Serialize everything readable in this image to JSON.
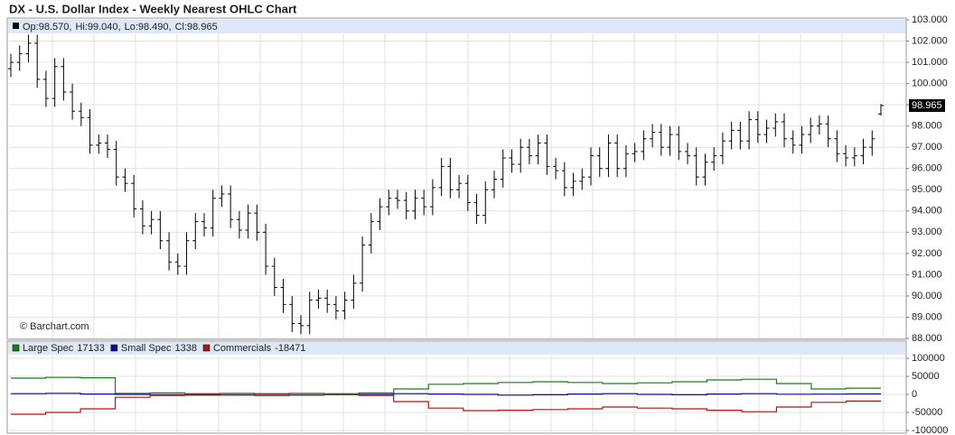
{
  "chart_data": [
    {
      "type": "ohlc",
      "title": "DX - U.S. Dollar Index - Weekly Nearest OHLC Chart",
      "readout": [
        "Op:98.570,",
        "Hi:99.040,",
        "Lo:98.490,",
        "Cl:98.965"
      ],
      "note": "© Barchart.com",
      "color": "#000000",
      "grid": true,
      "ylim": [
        88,
        103
      ],
      "yticks": [
        {
          "value": 88,
          "label": "88.000"
        },
        {
          "value": 89,
          "label": "89.000"
        },
        {
          "value": 90,
          "label": "90.000"
        },
        {
          "value": 91,
          "label": "91.000"
        },
        {
          "value": 92,
          "label": "92.000"
        },
        {
          "value": 93,
          "label": "93.000"
        },
        {
          "value": 94,
          "label": "94.000"
        },
        {
          "value": 95,
          "label": "95.000"
        },
        {
          "value": 96,
          "label": "96.000"
        },
        {
          "value": 97,
          "label": "97.000"
        },
        {
          "value": 98,
          "label": "98.000"
        },
        {
          "value": 99,
          "label": "99.000"
        },
        {
          "value": 100,
          "label": "100.000"
        },
        {
          "value": 101,
          "label": "101.000"
        },
        {
          "value": 102,
          "label": "102.000"
        },
        {
          "value": 103,
          "label": "103.000"
        }
      ],
      "last_price_label": "98.965",
      "open": [
        100.7,
        101.0,
        101.4,
        101.9,
        100.2,
        99.3,
        100.8,
        99.6,
        98.7,
        98.4,
        97.1,
        97.2,
        96.9,
        95.6,
        95.3,
        94.1,
        93.3,
        93.6,
        92.6,
        91.6,
        91.4,
        92.6,
        93.5,
        93.2,
        94.6,
        94.8,
        93.6,
        93.1,
        93.9,
        93.0,
        91.4,
        90.4,
        89.6,
        88.7,
        88.6,
        89.8,
        89.9,
        89.6,
        89.3,
        89.8,
        90.6,
        92.4,
        93.5,
        94.2,
        94.6,
        94.5,
        94.0,
        94.6,
        94.2,
        95.1,
        96.1,
        95.0,
        95.3,
        94.4,
        93.8,
        95.0,
        95.5,
        96.5,
        96.2,
        97.0,
        96.6,
        97.2,
        96.1,
        95.9,
        95.1,
        95.4,
        95.6,
        96.6,
        96.0,
        97.2,
        96.0,
        96.7,
        96.8,
        97.4,
        97.7,
        97.0,
        97.6,
        96.8,
        96.6,
        95.6,
        96.3,
        96.6,
        97.3,
        97.8,
        97.3,
        98.3,
        97.6,
        97.9,
        98.2,
        97.4,
        97.1,
        97.6,
        98.0,
        98.1,
        97.4,
        96.7,
        96.5,
        96.6,
        97.0,
        98.57
      ],
      "high": [
        101.4,
        101.8,
        102.3,
        102.3,
        100.6,
        101.2,
        101.2,
        100.0,
        99.1,
        98.8,
        97.6,
        97.6,
        97.3,
        96.0,
        95.7,
        94.5,
        94.0,
        94.0,
        93.0,
        92.0,
        93.0,
        93.9,
        93.9,
        95.0,
        95.2,
        95.2,
        94.0,
        94.3,
        94.3,
        93.4,
        91.8,
        90.8,
        90.0,
        89.1,
        90.2,
        90.3,
        90.3,
        90.0,
        90.2,
        91.0,
        92.8,
        93.9,
        94.6,
        95.0,
        95.0,
        94.9,
        95.0,
        95.0,
        95.5,
        96.5,
        96.5,
        95.7,
        95.7,
        94.8,
        95.4,
        95.9,
        96.9,
        96.9,
        97.4,
        97.4,
        97.6,
        97.6,
        96.5,
        96.3,
        95.8,
        96.0,
        97.0,
        97.0,
        97.6,
        97.6,
        97.1,
        97.2,
        97.8,
        98.1,
        98.1,
        98.0,
        98.0,
        97.2,
        97.0,
        96.7,
        97.0,
        97.7,
        98.2,
        98.2,
        98.7,
        98.7,
        98.3,
        98.6,
        98.6,
        97.8,
        98.0,
        98.4,
        98.5,
        98.5,
        97.8,
        97.1,
        97.0,
        97.4,
        97.8,
        99.04
      ],
      "low": [
        100.3,
        100.6,
        101.0,
        99.8,
        98.9,
        98.9,
        99.2,
        98.3,
        98.0,
        96.7,
        96.7,
        96.5,
        95.2,
        94.9,
        93.7,
        92.9,
        92.9,
        92.2,
        91.2,
        91.0,
        91.0,
        92.2,
        92.8,
        92.8,
        94.2,
        93.2,
        92.7,
        92.7,
        92.6,
        91.0,
        90.0,
        89.2,
        88.3,
        88.2,
        88.2,
        89.4,
        89.2,
        88.9,
        88.9,
        89.4,
        90.2,
        92.0,
        93.1,
        93.8,
        94.1,
        93.6,
        93.6,
        93.8,
        93.8,
        94.7,
        94.6,
        94.6,
        94.0,
        93.4,
        93.4,
        94.6,
        95.1,
        95.8,
        95.8,
        96.2,
        96.2,
        95.7,
        95.5,
        94.7,
        94.7,
        95.0,
        95.2,
        95.6,
        95.6,
        95.6,
        95.6,
        96.3,
        96.4,
        97.0,
        96.6,
        96.6,
        96.4,
        96.2,
        95.2,
        95.2,
        95.9,
        96.2,
        96.9,
        96.9,
        96.9,
        97.2,
        97.2,
        97.5,
        97.0,
        96.7,
        96.7,
        97.2,
        97.6,
        97.0,
        96.3,
        96.1,
        96.1,
        96.2,
        96.6,
        98.49
      ],
      "close": [
        101.0,
        101.4,
        101.9,
        100.2,
        99.3,
        100.8,
        99.6,
        98.7,
        98.4,
        97.1,
        97.2,
        96.9,
        95.6,
        95.3,
        94.1,
        93.3,
        93.6,
        92.6,
        91.6,
        91.4,
        92.6,
        93.5,
        93.2,
        94.6,
        94.8,
        93.6,
        93.1,
        93.9,
        93.0,
        91.4,
        90.4,
        89.6,
        88.7,
        88.6,
        89.8,
        89.9,
        89.6,
        89.3,
        89.8,
        90.6,
        92.4,
        93.5,
        94.2,
        94.6,
        94.5,
        94.0,
        94.6,
        94.2,
        95.1,
        96.1,
        95.0,
        95.3,
        94.4,
        93.8,
        95.0,
        95.5,
        96.5,
        96.2,
        97.0,
        96.6,
        97.2,
        96.1,
        95.9,
        95.1,
        95.4,
        95.6,
        96.6,
        96.0,
        97.2,
        96.0,
        96.7,
        96.8,
        97.4,
        97.7,
        97.0,
        97.6,
        96.8,
        96.6,
        95.6,
        96.3,
        96.6,
        97.3,
        97.8,
        97.3,
        98.3,
        97.6,
        97.9,
        98.2,
        97.4,
        97.1,
        97.6,
        98.0,
        98.1,
        97.4,
        96.7,
        96.5,
        96.6,
        97.0,
        97.4,
        98.965
      ]
    },
    {
      "type": "step",
      "grid": true,
      "ylim": [
        -100000,
        100000
      ],
      "yticks": [
        100000,
        50000,
        0,
        -50000,
        -100000
      ],
      "series": [
        {
          "name": "Large Spec",
          "color": "#1e7b1e",
          "values": [
            45000,
            47000,
            46000,
            3000,
            4000,
            2000,
            3000,
            1000,
            3000,
            2000,
            4000,
            15000,
            28000,
            30000,
            33000,
            35000,
            33000,
            30000,
            32000,
            35000,
            40000,
            42000,
            30000,
            15000,
            17133
          ]
        },
        {
          "name": "Small Spec",
          "color": "#0a0aa0",
          "values": [
            2000,
            3000,
            1000,
            0,
            -1000,
            -2000,
            -1000,
            -3000,
            -2000,
            -1000,
            0,
            2000,
            1000,
            0,
            -2000,
            -1000,
            1000,
            2000,
            0,
            -1000,
            1000,
            2000,
            500,
            800,
            1338
          ]
        },
        {
          "name": "Commercials",
          "color": "#b01515",
          "values": [
            -55000,
            -50000,
            -40000,
            -8000,
            -3000,
            0,
            -2000,
            2000,
            -1000,
            -1000,
            -3000,
            -20000,
            -38000,
            -45000,
            -44000,
            -42000,
            -40000,
            -35000,
            -38000,
            -40000,
            -44000,
            -48000,
            -35000,
            -22000,
            -18471
          ]
        }
      ]
    }
  ]
}
